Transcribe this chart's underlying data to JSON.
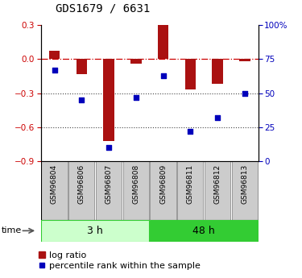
{
  "title": "GDS1679 / 6631",
  "samples": [
    "GSM96804",
    "GSM96806",
    "GSM96807",
    "GSM96808",
    "GSM96809",
    "GSM96811",
    "GSM96812",
    "GSM96813"
  ],
  "log_ratio": [
    0.07,
    -0.13,
    -0.72,
    -0.04,
    0.3,
    -0.27,
    -0.22,
    -0.02
  ],
  "percentile_rank": [
    67,
    45,
    10,
    47,
    63,
    22,
    32,
    50
  ],
  "groups": [
    {
      "label": "3 h",
      "indices": [
        0,
        1,
        2,
        3
      ],
      "color_light": "#ccffcc",
      "color_dark": "#33cc33"
    },
    {
      "label": "48 h",
      "indices": [
        4,
        5,
        6,
        7
      ],
      "color_light": "#55ee55",
      "color_dark": "#33cc33"
    }
  ],
  "ylim_left": [
    -0.9,
    0.3
  ],
  "ylim_right": [
    0,
    100
  ],
  "yticks_left": [
    -0.9,
    -0.6,
    -0.3,
    0.0,
    0.3
  ],
  "yticks_right": [
    0,
    25,
    50,
    75,
    100
  ],
  "ytick_labels_right": [
    "0",
    "25",
    "50",
    "75",
    "100%"
  ],
  "bar_color": "#aa1111",
  "dot_color": "#0000bb",
  "hline_color": "#cc0000",
  "dotted_line_color": "#444444",
  "title_fontsize": 10,
  "tick_fontsize": 7.5,
  "label_fontsize": 6.5,
  "legend_fontsize": 8,
  "bar_width": 0.4,
  "group_label_fontsize": 9,
  "sample_box_color": "#cccccc",
  "sample_box_edge": "#999999"
}
